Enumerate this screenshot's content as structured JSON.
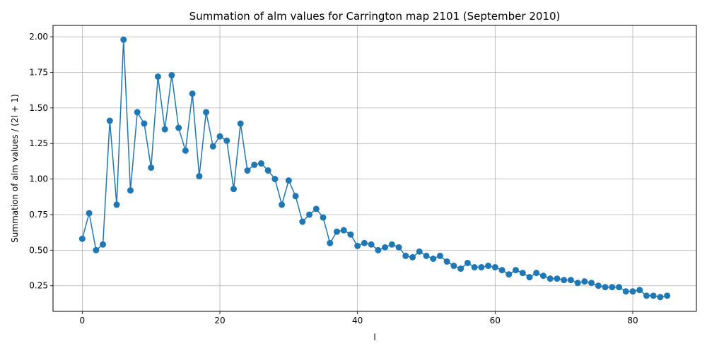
{
  "chart_data": {
    "type": "line",
    "title": "Summation of alm values for Carrington map 2101 (September 2010)",
    "xlabel": "l",
    "ylabel": "Summation of alm values / (2l + 1)",
    "xlim": [
      -4.25,
      89.25
    ],
    "ylim": [
      0.07,
      2.08
    ],
    "xticks": [
      0,
      20,
      40,
      60,
      80
    ],
    "xtick_labels": [
      "0",
      "20",
      "40",
      "60",
      "80"
    ],
    "yticks": [
      0.25,
      0.5,
      0.75,
      1.0,
      1.25,
      1.5,
      1.75,
      2.0
    ],
    "ytick_labels": [
      "0.25",
      "0.50",
      "0.75",
      "1.00",
      "1.25",
      "1.50",
      "1.75",
      "2.00"
    ],
    "grid": true,
    "series": [
      {
        "color": "#1f77b4",
        "marker": "circle",
        "x": [
          0,
          1,
          2,
          3,
          4,
          5,
          6,
          7,
          8,
          9,
          10,
          11,
          12,
          13,
          14,
          15,
          16,
          17,
          18,
          19,
          20,
          21,
          22,
          23,
          24,
          25,
          26,
          27,
          28,
          29,
          30,
          31,
          32,
          33,
          34,
          35,
          36,
          37,
          38,
          39,
          40,
          41,
          42,
          43,
          44,
          45,
          46,
          47,
          48,
          49,
          50,
          51,
          52,
          53,
          54,
          55,
          56,
          57,
          58,
          59,
          60,
          61,
          62,
          63,
          64,
          65,
          66,
          67,
          68,
          69,
          70,
          71,
          72,
          73,
          74,
          75,
          76,
          77,
          78,
          79,
          80,
          81,
          82,
          83,
          84,
          85
        ],
        "y": [
          0.58,
          0.76,
          0.5,
          0.54,
          1.41,
          0.82,
          1.98,
          0.92,
          1.47,
          1.39,
          1.08,
          1.72,
          1.35,
          1.73,
          1.36,
          1.2,
          1.6,
          1.02,
          1.47,
          1.23,
          1.3,
          1.27,
          0.93,
          1.39,
          1.06,
          1.1,
          1.11,
          1.06,
          1.0,
          0.82,
          0.99,
          0.88,
          0.7,
          0.75,
          0.79,
          0.73,
          0.55,
          0.63,
          0.64,
          0.61,
          0.53,
          0.55,
          0.54,
          0.5,
          0.52,
          0.54,
          0.52,
          0.46,
          0.45,
          0.49,
          0.46,
          0.44,
          0.46,
          0.42,
          0.39,
          0.37,
          0.41,
          0.38,
          0.38,
          0.39,
          0.38,
          0.36,
          0.33,
          0.36,
          0.34,
          0.31,
          0.34,
          0.32,
          0.3,
          0.3,
          0.29,
          0.29,
          0.27,
          0.28,
          0.27,
          0.25,
          0.24,
          0.24,
          0.24,
          0.21,
          0.21,
          0.22,
          0.18,
          0.18,
          0.17,
          0.18
        ]
      }
    ]
  }
}
